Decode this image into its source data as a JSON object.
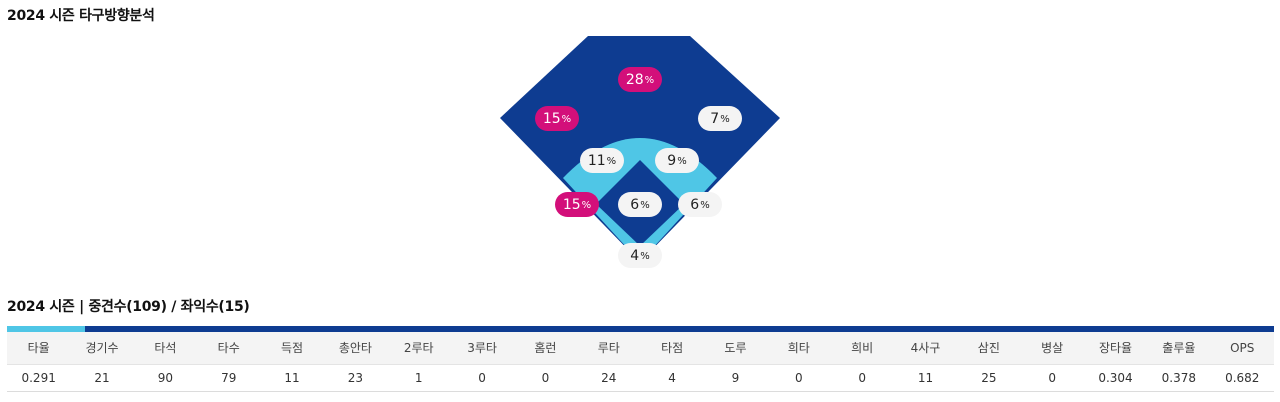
{
  "section1": {
    "title": "2024 시즌 타구방향분석"
  },
  "spray": {
    "unit": "%",
    "colors": {
      "outfield": "#0e3c91",
      "infield": "#4fc6e6",
      "hot": "#d30f7a",
      "cold": "#f4f4f4"
    },
    "zones": {
      "center_deep": {
        "value": "28",
        "level": "hot"
      },
      "left_deep": {
        "value": "15",
        "level": "hot"
      },
      "right_deep": {
        "value": "7",
        "level": "cold"
      },
      "left_mid": {
        "value": "11",
        "level": "cold"
      },
      "right_mid": {
        "value": "9",
        "level": "cold"
      },
      "left_line": {
        "value": "15",
        "level": "hot"
      },
      "infield": {
        "value": "6",
        "level": "cold"
      },
      "right_line": {
        "value": "6",
        "level": "cold"
      },
      "home": {
        "value": "4",
        "level": "cold"
      }
    }
  },
  "section2": {
    "title": "2024 시즌 | 중견수(109) / 좌익수(15)"
  },
  "stats": {
    "headers": [
      "타율",
      "경기수",
      "타석",
      "타수",
      "득점",
      "총안타",
      "2루타",
      "3루타",
      "홈런",
      "루타",
      "타점",
      "도루",
      "희타",
      "희비",
      "4사구",
      "삼진",
      "병살",
      "장타율",
      "출루율",
      "OPS"
    ],
    "values": [
      "0.291",
      "21",
      "90",
      "79",
      "11",
      "23",
      "1",
      "0",
      "0",
      "24",
      "4",
      "9",
      "0",
      "0",
      "11",
      "25",
      "0",
      "0.304",
      "0.378",
      "0.682"
    ]
  }
}
